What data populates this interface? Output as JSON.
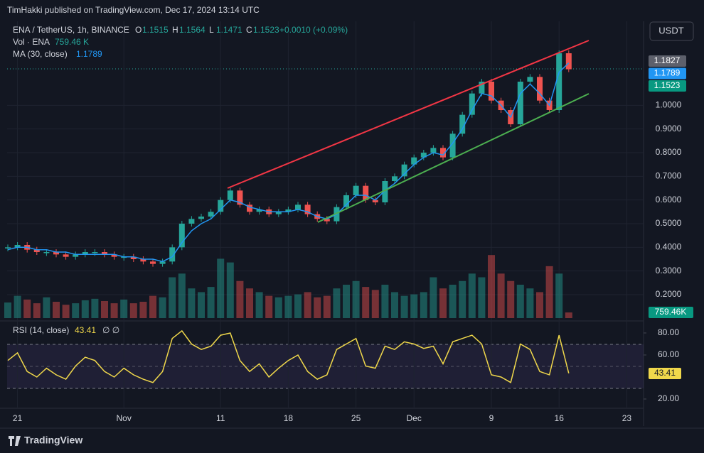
{
  "chart_data": {
    "type": "candlestick",
    "publisher": "TimHakki published on TradingView.com, Dec 17, 2024 13:14 UTC",
    "symbol": "ENA / TetherUS, 1h, BINANCE",
    "ohlc": [
      {
        "key": "O",
        "value": 1.1515
      },
      {
        "key": "H",
        "value": 1.1564
      },
      {
        "key": "L",
        "value": 1.1471
      },
      {
        "key": "C",
        "value": 1.1523
      }
    ],
    "change": "+0.0010 (+0.09%)",
    "currency": "USDT",
    "brand": "TradingView",
    "up_color": "#26a69a",
    "down_color": "#ef5350",
    "categories": [
      null,
      "21",
      null,
      null,
      null,
      null,
      null,
      null,
      null,
      null,
      null,
      null,
      "Nov",
      null,
      null,
      null,
      null,
      null,
      null,
      null,
      null,
      null,
      "11",
      null,
      null,
      null,
      null,
      null,
      null,
      "18",
      null,
      null,
      null,
      null,
      null,
      null,
      "25",
      null,
      null,
      null,
      null,
      null,
      "Dec",
      null,
      null,
      null,
      null,
      null,
      null,
      null,
      "9",
      null,
      null,
      null,
      null,
      null,
      null,
      "16",
      null,
      null,
      null,
      null,
      null,
      null,
      "23"
    ],
    "values": [
      0.4,
      0.41,
      0.39,
      0.38,
      0.38,
      0.37,
      0.36,
      0.37,
      0.38,
      0.38,
      0.37,
      0.36,
      0.36,
      0.35,
      0.34,
      0.33,
      0.34,
      0.4,
      0.5,
      0.52,
      0.53,
      0.55,
      0.6,
      0.64,
      0.58,
      0.55,
      0.56,
      0.54,
      0.55,
      0.56,
      0.58,
      0.54,
      0.52,
      0.51,
      0.57,
      0.62,
      0.66,
      0.6,
      0.59,
      0.68,
      0.7,
      0.75,
      0.78,
      0.8,
      0.82,
      0.78,
      0.88,
      0.96,
      1.05,
      1.1,
      1.02,
      0.98,
      0.92,
      1.1,
      1.12,
      1.02,
      0.98,
      1.22,
      1.1523,
      null,
      null,
      null,
      null,
      null,
      null
    ],
    "ma": {
      "name": "MA (30, close)",
      "color": "#2196f3",
      "values": [
        0.39,
        0.4,
        0.4,
        0.39,
        0.39,
        0.38,
        0.38,
        0.37,
        0.37,
        0.37,
        0.37,
        0.37,
        0.36,
        0.36,
        0.35,
        0.35,
        0.34,
        0.36,
        0.42,
        0.47,
        0.5,
        0.52,
        0.56,
        0.6,
        0.59,
        0.57,
        0.56,
        0.55,
        0.55,
        0.55,
        0.56,
        0.55,
        0.53,
        0.52,
        0.54,
        0.58,
        0.62,
        0.62,
        0.6,
        0.64,
        0.67,
        0.71,
        0.75,
        0.78,
        0.8,
        0.79,
        0.84,
        0.9,
        0.98,
        1.05,
        1.04,
        1.0,
        0.95,
        1.05,
        1.09,
        1.05,
        1.0,
        1.14,
        1.1789,
        null,
        null,
        null,
        null,
        null,
        null
      ]
    },
    "volume": {
      "name": "Vol · ENA",
      "last_label": "759.46 K",
      "tag_label": "759.46K",
      "values": [
        2100000,
        3000000,
        2500000,
        2000000,
        2800000,
        2200000,
        1800000,
        2000000,
        2400000,
        2600000,
        2300000,
        2000000,
        2500000,
        2000000,
        2200000,
        3000000,
        2800000,
        5500000,
        6000000,
        4000000,
        3500000,
        4200000,
        8000000,
        7500000,
        5000000,
        4000000,
        3500000,
        3000000,
        2800000,
        3000000,
        3200000,
        3500000,
        2800000,
        3000000,
        4000000,
        4500000,
        5000000,
        4200000,
        3800000,
        4500000,
        3500000,
        3000000,
        3200000,
        3500000,
        5500000,
        4000000,
        4500000,
        5000000,
        6000000,
        5500000,
        8500000,
        6000000,
        5000000,
        4500000,
        4000000,
        3500000,
        7000000,
        6000000,
        759460,
        null,
        null,
        null,
        null,
        null,
        null
      ]
    },
    "rsi": {
      "name": "RSI (14, close)",
      "icons": "∅  ∅",
      "color": "#f0d84b",
      "values": [
        55,
        62,
        45,
        40,
        48,
        42,
        38,
        50,
        58,
        55,
        45,
        40,
        48,
        42,
        38,
        35,
        45,
        75,
        82,
        70,
        65,
        68,
        78,
        80,
        55,
        45,
        52,
        40,
        48,
        55,
        60,
        45,
        38,
        42,
        65,
        70,
        75,
        50,
        48,
        68,
        65,
        72,
        70,
        66,
        68,
        52,
        72,
        75,
        78,
        70,
        42,
        40,
        35,
        70,
        65,
        45,
        42,
        78,
        43.41,
        null,
        null,
        null,
        null,
        null,
        null
      ],
      "ylim": [
        11.6,
        89
      ],
      "yticks": [
        {
          "value": 80,
          "label": "80.00"
        },
        {
          "value": 60,
          "label": "60.00"
        },
        {
          "value": 20,
          "label": "20.00"
        }
      ]
    },
    "price_tags": [
      1.1827,
      1.1789,
      1.1523
    ],
    "ylim": [
      0.095,
      1.355
    ],
    "yticks": [
      {
        "value": 1.0,
        "label": "1.0000"
      },
      {
        "value": 0.9,
        "label": "0.9000"
      },
      {
        "value": 0.8,
        "label": "0.8000"
      },
      {
        "value": 0.7,
        "label": "0.7000"
      },
      {
        "value": 0.6,
        "label": "0.6000"
      },
      {
        "value": 0.5,
        "label": "0.5000"
      },
      {
        "value": 0.4,
        "label": "0.4000"
      },
      {
        "value": 0.3,
        "label": "0.3000"
      },
      {
        "value": 0.2,
        "label": "0.2000"
      }
    ],
    "y2lim": [
      0,
      40000000
    ],
    "grid": true
  }
}
